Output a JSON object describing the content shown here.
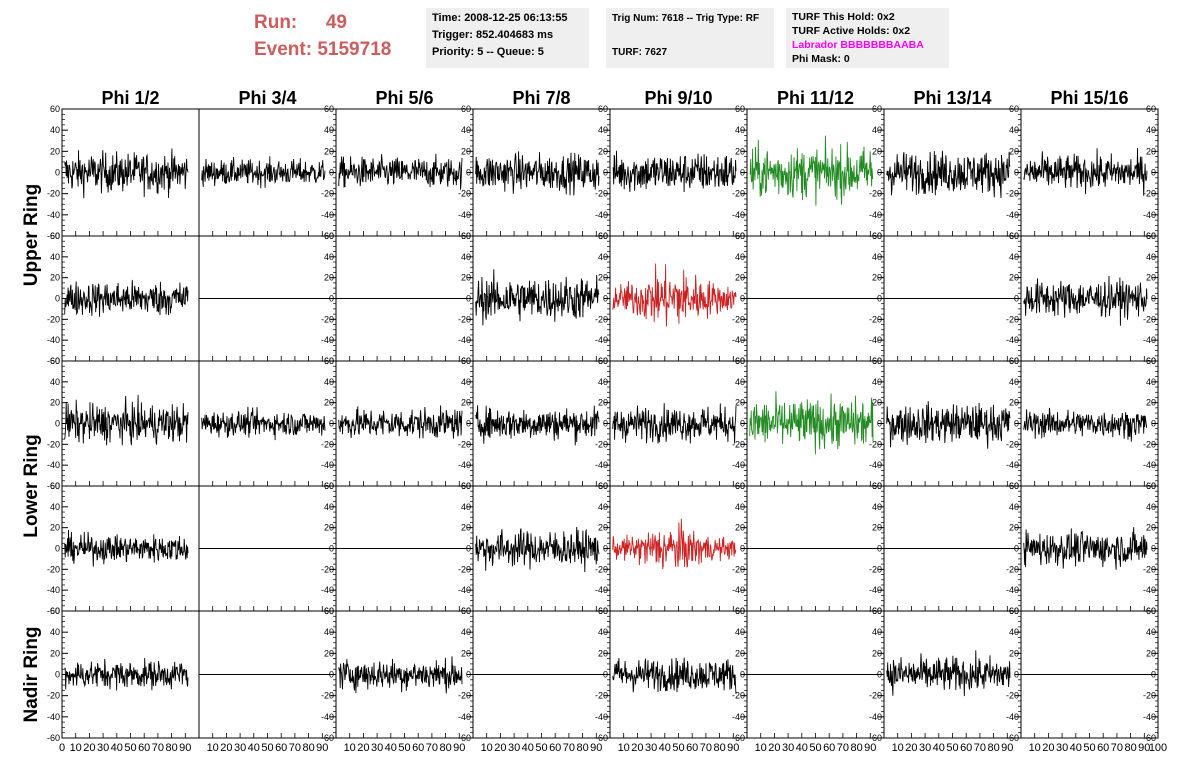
{
  "header": {
    "run_label": "Run:",
    "run_value": "49",
    "event_label": "Event:",
    "event_value": "5159718",
    "time": "Time: 2008-12-25 06:13:55",
    "trigger": "Trigger: 852.404683 ms",
    "priority": "Priority: 5 -- Queue: 5",
    "trig_num": "Trig Num: 7618 -- Trig Type: RF",
    "turf": "TURF: 7627",
    "turf_this_hold": "TURF This Hold: 0x2",
    "turf_active_holds": "TURF Active Holds: 0x2",
    "labrador": "Labrador BBBBBBBAABA",
    "phi_mask": "Phi Mask: 0",
    "colors": {
      "run_text": "#cd5c5c",
      "labrador_text": "#ff00ff",
      "box_bg": "#efefef"
    }
  },
  "chart_data": {
    "type": "line",
    "columns": [
      "Phi 1/2",
      "Phi 3/4",
      "Phi 5/6",
      "Phi 7/8",
      "Phi 9/10",
      "Phi 11/12",
      "Phi 13/14",
      "Phi 15/16"
    ],
    "ring_labels": [
      {
        "label": "Upper Ring",
        "rows": [
          0,
          1
        ]
      },
      {
        "label": "Lower Ring",
        "rows": [
          2,
          3
        ]
      },
      {
        "label": "Nadir Ring",
        "rows": [
          4
        ]
      }
    ],
    "xlim": [
      0,
      100
    ],
    "ylim": [
      -60,
      60
    ],
    "yticks": [
      -60,
      -40,
      -20,
      0,
      20,
      40,
      60
    ],
    "xticks": [
      0,
      10,
      20,
      30,
      40,
      50,
      60,
      70,
      80,
      90,
      100
    ],
    "colors": {
      "normal": "#000000",
      "triggered": "#228b22",
      "highlight": "#cc2222"
    },
    "rows": [
      {
        "panels": [
          {
            "active": true,
            "color": "normal",
            "amplitude": 17
          },
          {
            "active": true,
            "color": "normal",
            "amplitude": 11
          },
          {
            "active": true,
            "color": "normal",
            "amplitude": 13
          },
          {
            "active": true,
            "color": "normal",
            "amplitude": 16
          },
          {
            "active": true,
            "color": "normal",
            "amplitude": 17
          },
          {
            "active": true,
            "color": "triggered",
            "amplitude": 22
          },
          {
            "active": true,
            "color": "normal",
            "amplitude": 18
          },
          {
            "active": true,
            "color": "normal",
            "amplitude": 15
          }
        ]
      },
      {
        "panels": [
          {
            "active": true,
            "color": "normal",
            "amplitude": 15
          },
          {
            "active": false,
            "color": "normal",
            "amplitude": 0
          },
          {
            "active": false,
            "color": "normal",
            "amplitude": 0
          },
          {
            "active": true,
            "color": "normal",
            "amplitude": 19
          },
          {
            "active": true,
            "color": "highlight",
            "amplitude": 22
          },
          {
            "active": false,
            "color": "normal",
            "amplitude": 0
          },
          {
            "active": false,
            "color": "normal",
            "amplitude": 0
          },
          {
            "active": true,
            "color": "normal",
            "amplitude": 16
          }
        ]
      },
      {
        "panels": [
          {
            "active": true,
            "color": "normal",
            "amplitude": 17
          },
          {
            "active": true,
            "color": "normal",
            "amplitude": 11
          },
          {
            "active": true,
            "color": "normal",
            "amplitude": 13
          },
          {
            "active": true,
            "color": "normal",
            "amplitude": 14
          },
          {
            "active": true,
            "color": "normal",
            "amplitude": 15
          },
          {
            "active": true,
            "color": "triggered",
            "amplitude": 21
          },
          {
            "active": true,
            "color": "normal",
            "amplitude": 17
          },
          {
            "active": true,
            "color": "normal",
            "amplitude": 12
          }
        ]
      },
      {
        "panels": [
          {
            "active": true,
            "color": "normal",
            "amplitude": 12
          },
          {
            "active": false,
            "color": "normal",
            "amplitude": 0
          },
          {
            "active": false,
            "color": "normal",
            "amplitude": 0
          },
          {
            "active": true,
            "color": "normal",
            "amplitude": 16
          },
          {
            "active": true,
            "color": "highlight",
            "amplitude": 17
          },
          {
            "active": false,
            "color": "normal",
            "amplitude": 0
          },
          {
            "active": false,
            "color": "normal",
            "amplitude": 0
          },
          {
            "active": true,
            "color": "normal",
            "amplitude": 15
          }
        ]
      },
      {
        "panels": [
          {
            "active": true,
            "color": "normal",
            "amplitude": 12
          },
          {
            "active": false,
            "color": "normal",
            "amplitude": 0
          },
          {
            "active": true,
            "color": "normal",
            "amplitude": 13
          },
          {
            "active": false,
            "color": "normal",
            "amplitude": 0
          },
          {
            "active": true,
            "color": "normal",
            "amplitude": 14
          },
          {
            "active": false,
            "color": "normal",
            "amplitude": 0
          },
          {
            "active": true,
            "color": "normal",
            "amplitude": 15
          },
          {
            "active": false,
            "color": "normal",
            "amplitude": 0
          }
        ]
      }
    ]
  }
}
